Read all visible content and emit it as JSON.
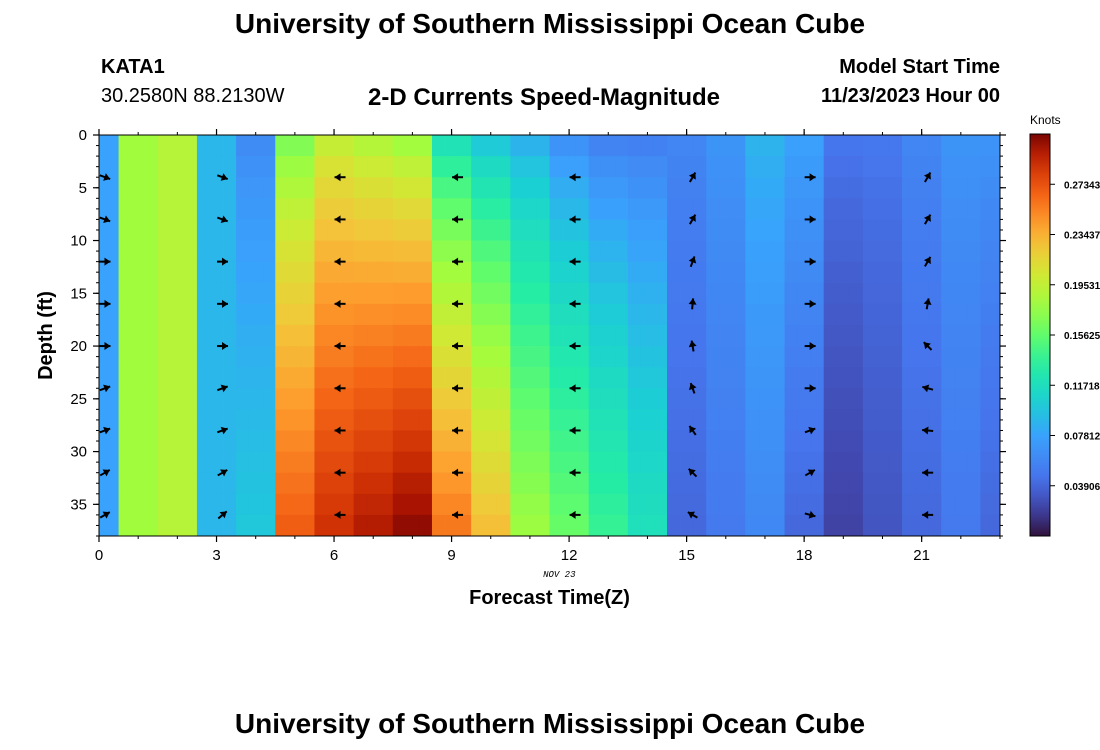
{
  "header": {
    "title": "University of Southern Mississippi Ocean Cube",
    "station_id": "KATA1",
    "lat_lon": "30.2580N  88.2130W",
    "plot_title": "2-D Currents Speed-Magnitude",
    "model_start_label": "Model Start Time",
    "model_start_value": "11/23/2023 Hour 00"
  },
  "footer": {
    "next_title": "University of Southern Mississippi Ocean Cube"
  },
  "chart_data": {
    "type": "heatmap",
    "xlabel": "Forecast Time(Z)",
    "ylabel": "Depth (ft)",
    "date_label": "NOV 23",
    "xlim": [
      0,
      23
    ],
    "ylim": [
      0,
      38
    ],
    "x_ticks": [
      0,
      3,
      6,
      9,
      12,
      15,
      18,
      21
    ],
    "y_ticks": [
      0,
      5,
      10,
      15,
      20,
      25,
      30,
      35
    ],
    "colorbar": {
      "unit": "Knots",
      "min": 0.0,
      "max": 0.3125,
      "tick_labels": [
        "0.27343",
        "0.23437",
        "0.19531",
        "0.15625",
        "0.11718",
        "0.07812",
        "0.03906"
      ],
      "tick_values": [
        0.27343,
        0.23437,
        0.19531,
        0.15625,
        0.11718,
        0.07812,
        0.03906
      ]
    },
    "hourly_speed_knots": {
      "hours": [
        0,
        1,
        2,
        3,
        4,
        5,
        6,
        7,
        8,
        9,
        10,
        11,
        12,
        13,
        14,
        15,
        16,
        17,
        18,
        19,
        20,
        21,
        22,
        23
      ],
      "surface": [
        0.078,
        0.18,
        0.19,
        0.09,
        0.06,
        0.16,
        0.19,
        0.18,
        0.17,
        0.11,
        0.09,
        0.08,
        0.06,
        0.05,
        0.05,
        0.06,
        0.07,
        0.09,
        0.08,
        0.05,
        0.05,
        0.06,
        0.07,
        0.07
      ],
      "bottom": [
        0.078,
        0.18,
        0.19,
        0.09,
        0.1,
        0.27,
        0.29,
        0.3,
        0.31,
        0.26,
        0.23,
        0.18,
        0.16,
        0.14,
        0.12,
        0.04,
        0.05,
        0.06,
        0.04,
        0.02,
        0.03,
        0.04,
        0.05,
        0.04
      ]
    },
    "vector_hours": [
      0,
      3,
      6,
      9,
      12,
      15,
      18,
      21
    ],
    "vector_depths_ft": [
      4,
      8,
      12,
      16,
      20,
      24,
      28,
      32,
      36
    ],
    "vector_directions_deg": [
      [
        20,
        20,
        180,
        180,
        180,
        300,
        0,
        300
      ],
      [
        20,
        20,
        180,
        180,
        180,
        300,
        0,
        300
      ],
      [
        0,
        0,
        180,
        180,
        180,
        290,
        0,
        300
      ],
      [
        0,
        0,
        180,
        180,
        180,
        275,
        0,
        280
      ],
      [
        0,
        0,
        180,
        180,
        180,
        260,
        0,
        225
      ],
      [
        340,
        340,
        180,
        180,
        180,
        250,
        0,
        195
      ],
      [
        340,
        340,
        180,
        180,
        180,
        235,
        340,
        185
      ],
      [
        330,
        330,
        180,
        180,
        180,
        225,
        330,
        180
      ],
      [
        330,
        320,
        180,
        180,
        180,
        210,
        15,
        180
      ]
    ]
  }
}
